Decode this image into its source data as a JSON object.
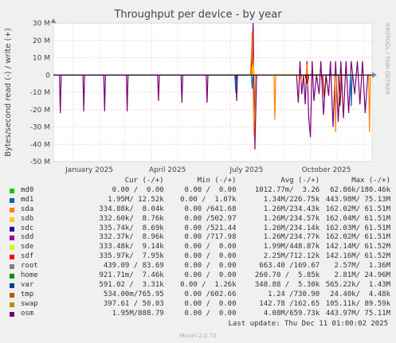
{
  "chart_data": {
    "type": "line",
    "title": "Throughput per device - by year",
    "ylabel": "Bytes/second read (-) / write (+)",
    "side_label": "RRDTOOL / TOBI OETIKER",
    "ylim": [
      -50000000,
      30000000
    ],
    "y_ticks": [
      {
        "label": "30 M",
        "value": 30000000
      },
      {
        "label": "20 M",
        "value": 20000000
      },
      {
        "label": "10 M",
        "value": 10000000
      },
      {
        "label": "0",
        "value": 0
      },
      {
        "label": "-10 M",
        "value": -10000000
      },
      {
        "label": "-20 M",
        "value": -20000000
      },
      {
        "label": "-30 M",
        "value": -30000000
      },
      {
        "label": "-40 M",
        "value": -40000000
      },
      {
        "label": "-50 M",
        "value": -50000000
      }
    ],
    "xlim": [
      "2024-12-09",
      "2025-12-11"
    ],
    "x_ticks": [
      {
        "label": "January 2025",
        "date": "2025-01-01"
      },
      {
        "label": "April 2025",
        "date": "2025-04-01"
      },
      {
        "label": "July 2025",
        "date": "2025-07-01"
      },
      {
        "label": "October 2025",
        "date": "2025-10-01"
      }
    ],
    "grid": true,
    "series": [
      {
        "name": "osm",
        "color": "#7a0177",
        "points": [
          [
            "2024-12-09",
            0
          ],
          [
            "2024-12-16",
            0
          ],
          [
            "2024-12-17",
            -22000000
          ],
          [
            "2024-12-18",
            0
          ],
          [
            "2025-01-12",
            0
          ],
          [
            "2025-01-13",
            -21000000
          ],
          [
            "2025-01-14",
            0
          ],
          [
            "2025-02-05",
            0
          ],
          [
            "2025-02-06",
            -21000000
          ],
          [
            "2025-02-07",
            0
          ],
          [
            "2025-03-03",
            0
          ],
          [
            "2025-03-04",
            -21000000
          ],
          [
            "2025-03-05",
            0
          ],
          [
            "2025-04-08",
            0
          ],
          [
            "2025-04-09",
            -15000000
          ],
          [
            "2025-04-10",
            0
          ],
          [
            "2025-05-05",
            0
          ],
          [
            "2025-05-06",
            -16000000
          ],
          [
            "2025-05-07",
            0
          ],
          [
            "2025-06-03",
            0
          ],
          [
            "2025-06-04",
            -16000000
          ],
          [
            "2025-06-05",
            0
          ],
          [
            "2025-07-07",
            0
          ],
          [
            "2025-07-08",
            -15000000
          ],
          [
            "2025-07-09",
            0
          ],
          [
            "2025-07-25",
            0
          ],
          [
            "2025-07-27",
            30000000
          ],
          [
            "2025-07-29",
            -43000000
          ],
          [
            "2025-07-31",
            0
          ],
          [
            "2025-09-15",
            0
          ],
          [
            "2025-09-17",
            -16000000
          ],
          [
            "2025-09-19",
            8000000
          ],
          [
            "2025-09-21",
            -11000000
          ],
          [
            "2025-09-23",
            0
          ],
          [
            "2025-09-25",
            -17000000
          ],
          [
            "2025-09-27",
            8000000
          ],
          [
            "2025-09-29",
            -24000000
          ],
          [
            "2025-10-01",
            -36000000
          ],
          [
            "2025-10-03",
            8000000
          ],
          [
            "2025-10-05",
            -15000000
          ],
          [
            "2025-10-08",
            0
          ],
          [
            "2025-10-11",
            -11000000
          ],
          [
            "2025-10-13",
            8000000
          ],
          [
            "2025-10-16",
            -23000000
          ],
          [
            "2025-10-19",
            0
          ],
          [
            "2025-10-22",
            -12000000
          ],
          [
            "2025-10-24",
            8000000
          ],
          [
            "2025-10-27",
            -30000000
          ],
          [
            "2025-10-30",
            8000000
          ],
          [
            "2025-11-02",
            -27000000
          ],
          [
            "2025-11-05",
            8000000
          ],
          [
            "2025-11-08",
            -25000000
          ],
          [
            "2025-11-11",
            8000000
          ],
          [
            "2025-11-14",
            -22000000
          ],
          [
            "2025-11-17",
            8000000
          ],
          [
            "2025-11-21",
            -11000000
          ],
          [
            "2025-11-24",
            8000000
          ],
          [
            "2025-11-27",
            -17000000
          ],
          [
            "2025-11-30",
            8000000
          ],
          [
            "2025-12-03",
            -22000000
          ],
          [
            "2025-12-06",
            0
          ],
          [
            "2025-12-11",
            0
          ]
        ]
      },
      {
        "name": "swap",
        "color": "#ff7f00",
        "points": [
          [
            "2025-07-24",
            0
          ],
          [
            "2025-07-26",
            25000000
          ],
          [
            "2025-07-28",
            -35000000
          ],
          [
            "2025-07-30",
            0
          ],
          [
            "2025-08-20",
            0
          ],
          [
            "2025-08-21",
            -26000000
          ],
          [
            "2025-08-22",
            0
          ],
          [
            "2025-09-26",
            0
          ],
          [
            "2025-09-27",
            6000000
          ],
          [
            "2025-09-28",
            -6000000
          ],
          [
            "2025-09-29",
            0
          ],
          [
            "2025-10-29",
            0
          ],
          [
            "2025-10-30",
            -33000000
          ],
          [
            "2025-10-31",
            0
          ],
          [
            "2025-12-07",
            0
          ],
          [
            "2025-12-08",
            -33000000
          ],
          [
            "2025-12-09",
            0
          ],
          [
            "2025-12-11",
            0
          ]
        ]
      },
      {
        "name": "md1",
        "color": "#0066b3",
        "points": [
          [
            "2025-07-06",
            0
          ],
          [
            "2025-07-07",
            -10000000
          ],
          [
            "2025-07-08",
            0
          ],
          [
            "2025-07-25",
            0
          ],
          [
            "2025-07-26",
            -8000000
          ],
          [
            "2025-07-27",
            0
          ],
          [
            "2025-11-16",
            0
          ],
          [
            "2025-11-17",
            -18000000
          ],
          [
            "2025-11-18",
            0
          ]
        ]
      },
      {
        "name": "sda",
        "color": "#ff8000",
        "points": [
          [
            "2025-07-25",
            0
          ],
          [
            "2025-07-27",
            10000000
          ],
          [
            "2025-07-28",
            0
          ],
          [
            "2025-09-19",
            0
          ],
          [
            "2025-09-20",
            -4000000
          ],
          [
            "2025-09-21",
            0
          ]
        ]
      },
      {
        "name": "root",
        "color": "#990000",
        "points": [
          [
            "2025-09-25",
            0
          ],
          [
            "2025-09-27",
            -5000000
          ],
          [
            "2025-09-29",
            0
          ],
          [
            "2025-10-15",
            0
          ],
          [
            "2025-10-17",
            -13000000
          ],
          [
            "2025-10-19",
            0
          ],
          [
            "2025-11-02",
            0
          ],
          [
            "2025-11-04",
            -18000000
          ],
          [
            "2025-11-06",
            0
          ]
        ]
      },
      {
        "name": "sdb",
        "color": "#ffcc00",
        "points": [
          [
            "2025-07-26",
            0
          ],
          [
            "2025-07-27",
            6000000
          ],
          [
            "2025-07-28",
            0
          ]
        ]
      }
    ]
  },
  "legend": {
    "headers": {
      "cur": "Cur (-/+)",
      "min": "Min (-/+)",
      "avg": "Avg (-/+)",
      "max": "Max (-/+)"
    },
    "rows": [
      {
        "name": "md0",
        "color": "#00cc00",
        "cur": "0.00 /  0.00",
        "min": "0.00 /  0.00",
        "avg": "1012.77m/  3.26",
        "max": "62.86k/180.46k"
      },
      {
        "name": "md1",
        "color": "#0066b3",
        "cur": "1.95M/ 12.52k",
        "min": "0.00 /  1.07k",
        "avg": "1.34M/226.75k",
        "max": "443.98M/ 75.13M"
      },
      {
        "name": "sda",
        "color": "#ff8000",
        "cur": "334.88k/  8.04k",
        "min": "0.00 /641.68",
        "avg": "1.26M/234.43k",
        "max": "162.02M/ 61.51M"
      },
      {
        "name": "sdb",
        "color": "#ffcc00",
        "cur": "332.60k/  8.76k",
        "min": "0.00 /502.97",
        "avg": "1.26M/234.57k",
        "max": "162.04M/ 61.51M"
      },
      {
        "name": "sdc",
        "color": "#330099",
        "cur": "335.74k/  8.69k",
        "min": "0.00 /521.44",
        "avg": "1.26M/234.14k",
        "max": "162.03M/ 61.51M"
      },
      {
        "name": "sdd",
        "color": "#990099",
        "cur": "332.37k/  8.96k",
        "min": "0.00 /717.98",
        "avg": "1.26M/234.77k",
        "max": "162.02M/ 61.51M"
      },
      {
        "name": "sde",
        "color": "#ccff00",
        "cur": "333.48k/  9.14k",
        "min": "0.00 /  0.00",
        "avg": "1.99M/448.87k",
        "max": "142.14M/ 61.52M"
      },
      {
        "name": "sdf",
        "color": "#ff0000",
        "cur": "335.97k/  7.95k",
        "min": "0.00 /  0.00",
        "avg": "2.25M/712.12k",
        "max": "142.16M/ 61.52M"
      },
      {
        "name": "root",
        "color": "#808080",
        "cur": "439.09 / 83.69",
        "min": "0.00 /  0.00",
        "avg": "663.40 /169.67",
        "max": "2.57M/  1.36M"
      },
      {
        "name": "home",
        "color": "#008f00",
        "cur": "921.71m/  7.46k",
        "min": "0.00 /  0.00",
        "avg": "260.70 /  5.85k",
        "max": "2.81M/ 24.96M"
      },
      {
        "name": "var",
        "color": "#00487d",
        "cur": "591.02 /  3.31k",
        "min": "0.00 /  1.26k",
        "avg": "348.88 /  5.30k",
        "max": "565.22k/  1.43M"
      },
      {
        "name": "tmp",
        "color": "#b35a00",
        "cur": "534.00m/765.95",
        "min": "0.00 /602.66",
        "avg": "1.24 /730.90",
        "max": "24.40k/  4.48k"
      },
      {
        "name": "swap",
        "color": "#b38f00",
        "cur": "397.61 / 50.03",
        "min": "0.00 /  0.00",
        "avg": "142.78 /162.65",
        "max": "105.11k/ 89.59k"
      },
      {
        "name": "osm",
        "color": "#6b006b",
        "cur": "1.95M/888.79",
        "min": "0.00 /  0.00",
        "avg": "4.08M/659.73k",
        "max": "443.97M/ 75.11M"
      }
    ]
  },
  "last_update": "Last update: Thu Dec 11 01:00:02 2025",
  "munin_version": "Munin 2.0.73"
}
